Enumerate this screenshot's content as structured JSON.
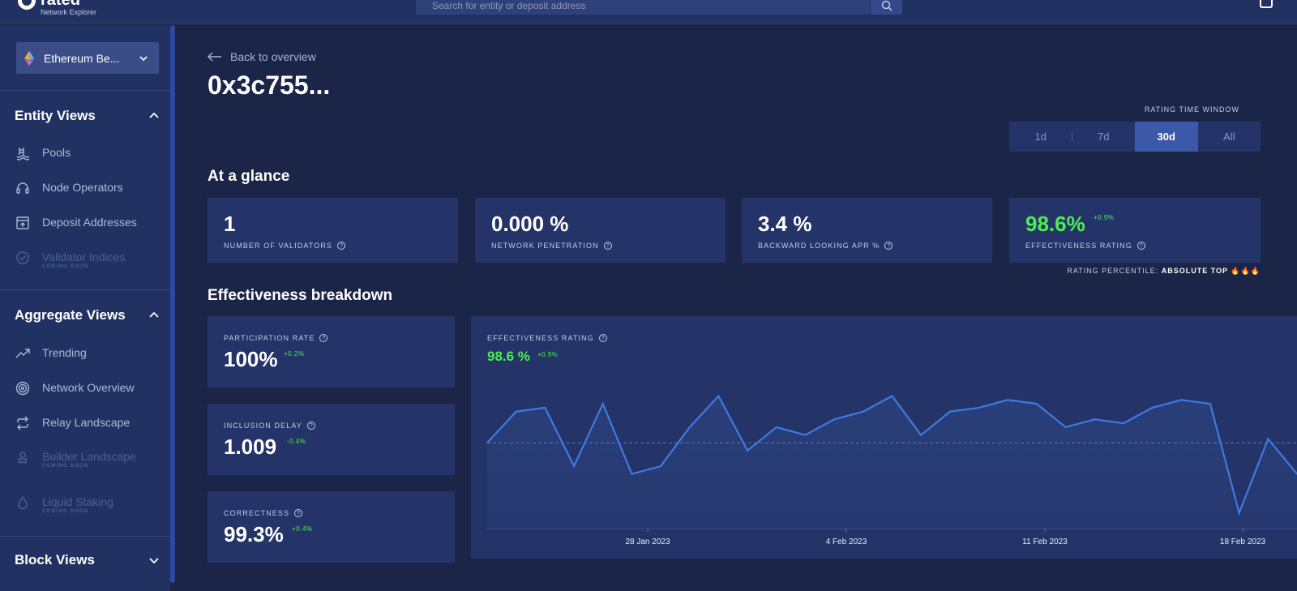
{
  "app": {
    "logo_name": "rated",
    "logo_sub": "Network Explorer"
  },
  "search": {
    "placeholder": "Search for entity or deposit address"
  },
  "sidebar": {
    "network": "Ethereum Be...",
    "entity_views": {
      "title": "Entity Views",
      "items": [
        {
          "label": "Pools",
          "icon": "pool-icon",
          "disabled": false
        },
        {
          "label": "Node Operators",
          "icon": "headset-icon",
          "disabled": false
        },
        {
          "label": "Deposit Addresses",
          "icon": "deposit-icon",
          "disabled": false
        },
        {
          "label": "Validator Indices",
          "icon": "check-circle-icon",
          "disabled": true,
          "note": "COMING SOON"
        }
      ]
    },
    "aggregate_views": {
      "title": "Aggregate Views",
      "items": [
        {
          "label": "Trending",
          "icon": "trending-icon",
          "disabled": false
        },
        {
          "label": "Network Overview",
          "icon": "target-icon",
          "disabled": false
        },
        {
          "label": "Relay Landscape",
          "icon": "relay-icon",
          "disabled": false
        },
        {
          "label": "Builder Landscape",
          "icon": "builder-icon",
          "disabled": true,
          "note": "COMING SOON"
        },
        {
          "label": "Liquid Staking",
          "icon": "drop-icon",
          "disabled": true,
          "note": "COMING SOON"
        }
      ]
    },
    "block_views": {
      "title": "Block Views"
    }
  },
  "main": {
    "back_label": "Back to overview",
    "title": "0x3c755...",
    "rating_window": {
      "label": "RATING TIME WINDOW",
      "options": [
        "1d",
        "7d",
        "30d",
        "All"
      ],
      "selected": "30d"
    },
    "at_a_glance": {
      "title": "At a glance",
      "cards": [
        {
          "value": "1",
          "label": "NUMBER OF VALIDATORS"
        },
        {
          "value": "0.000 %",
          "label": "NETWORK PENETRATION"
        },
        {
          "value": "3.4 %",
          "label": "BACKWARD LOOKING APR %"
        },
        {
          "value": "98.6%",
          "delta": "+0.9%",
          "label": "EFFECTIVENESS RATING"
        }
      ],
      "percentile_label": "RATING PERCENTILE:",
      "percentile_value": "ABSOLUTE TOP 🔥🔥🔥"
    },
    "breakdown": {
      "title": "Effectiveness breakdown",
      "cards": [
        {
          "label": "PARTICIPATION RATE",
          "value": "100%",
          "delta": "+0.2%"
        },
        {
          "label": "INCLUSION DELAY",
          "value": "1.009",
          "delta": "-0.4%"
        },
        {
          "label": "CORRECTNESS",
          "value": "99.3%",
          "delta": "+0.4%"
        }
      ],
      "chart_label": "EFFECTIVENESS RATING",
      "chart_value": "98.6 %",
      "chart_delta": "+0.9%"
    }
  },
  "chart_data": {
    "type": "area",
    "x_ticks": [
      "28 Jan 2023",
      "4 Feb 2023",
      "11 Feb 2023",
      "18 Feb 2023"
    ],
    "values": [
      98.6,
      99.0,
      99.05,
      98.3,
      99.1,
      98.2,
      98.3,
      98.8,
      99.2,
      98.5,
      98.8,
      98.7,
      98.9,
      99.0,
      99.2,
      98.7,
      99.0,
      99.05,
      99.15,
      99.1,
      98.8,
      98.9,
      98.85,
      99.05,
      99.15,
      99.1,
      97.7,
      98.65,
      98.2
    ],
    "reference_line": 98.6,
    "ylim": [
      97.5,
      99.6
    ],
    "colors": {
      "line": "#3d7be0",
      "fill": "#2a3f7a"
    }
  }
}
